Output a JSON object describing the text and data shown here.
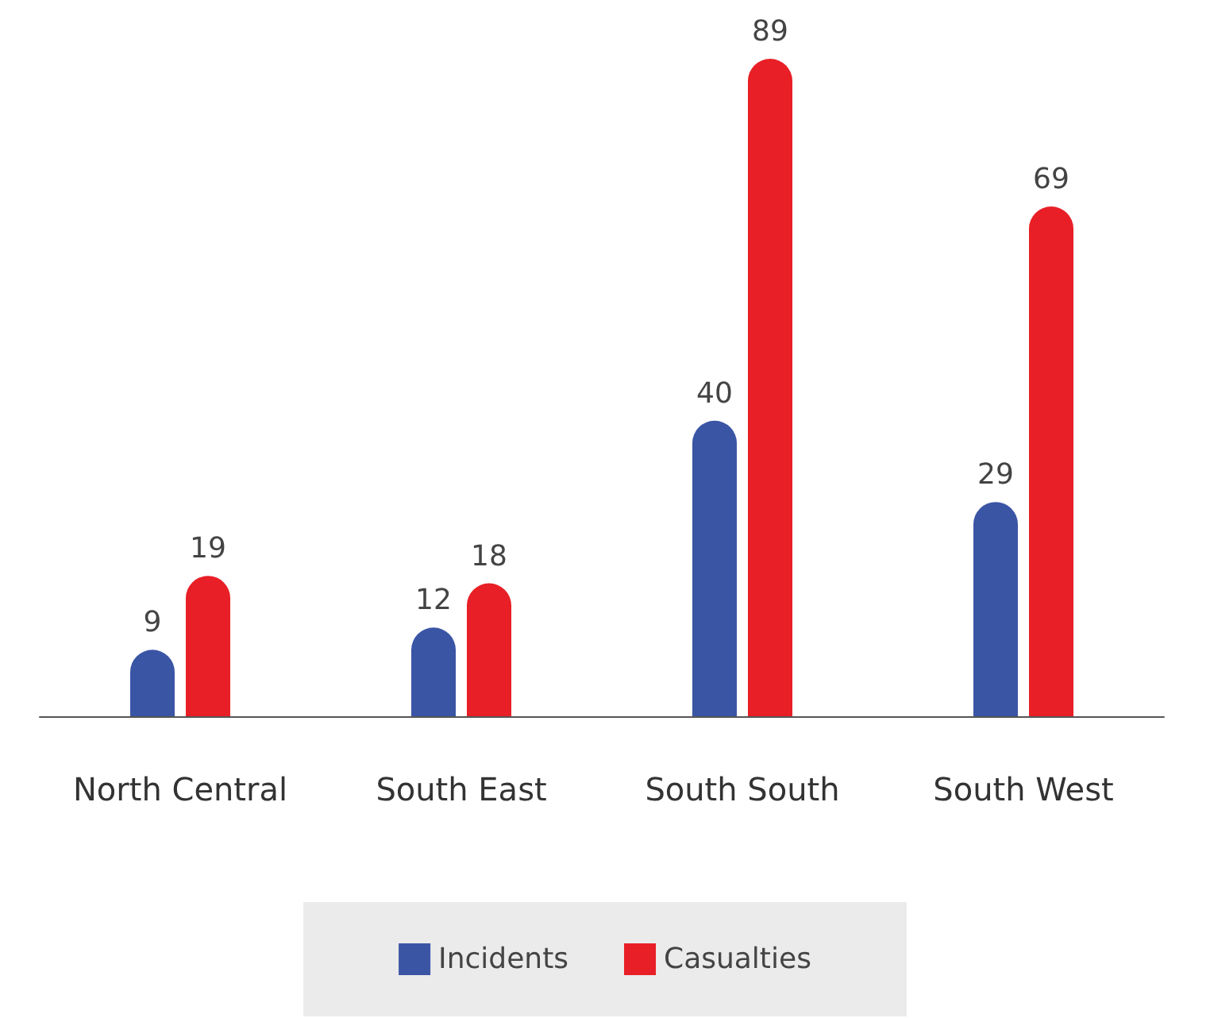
{
  "chart_data": {
    "type": "bar",
    "categories": [
      "North Central",
      "South East",
      "South South",
      "South West"
    ],
    "series": [
      {
        "name": "Incidents",
        "color": "#3b55a5",
        "values": [
          9,
          12,
          40,
          29
        ]
      },
      {
        "name": "Casualties",
        "color": "#e81f26",
        "values": [
          19,
          18,
          89,
          69
        ]
      }
    ],
    "data_labels": true,
    "legend": "bottom",
    "grid": false
  }
}
